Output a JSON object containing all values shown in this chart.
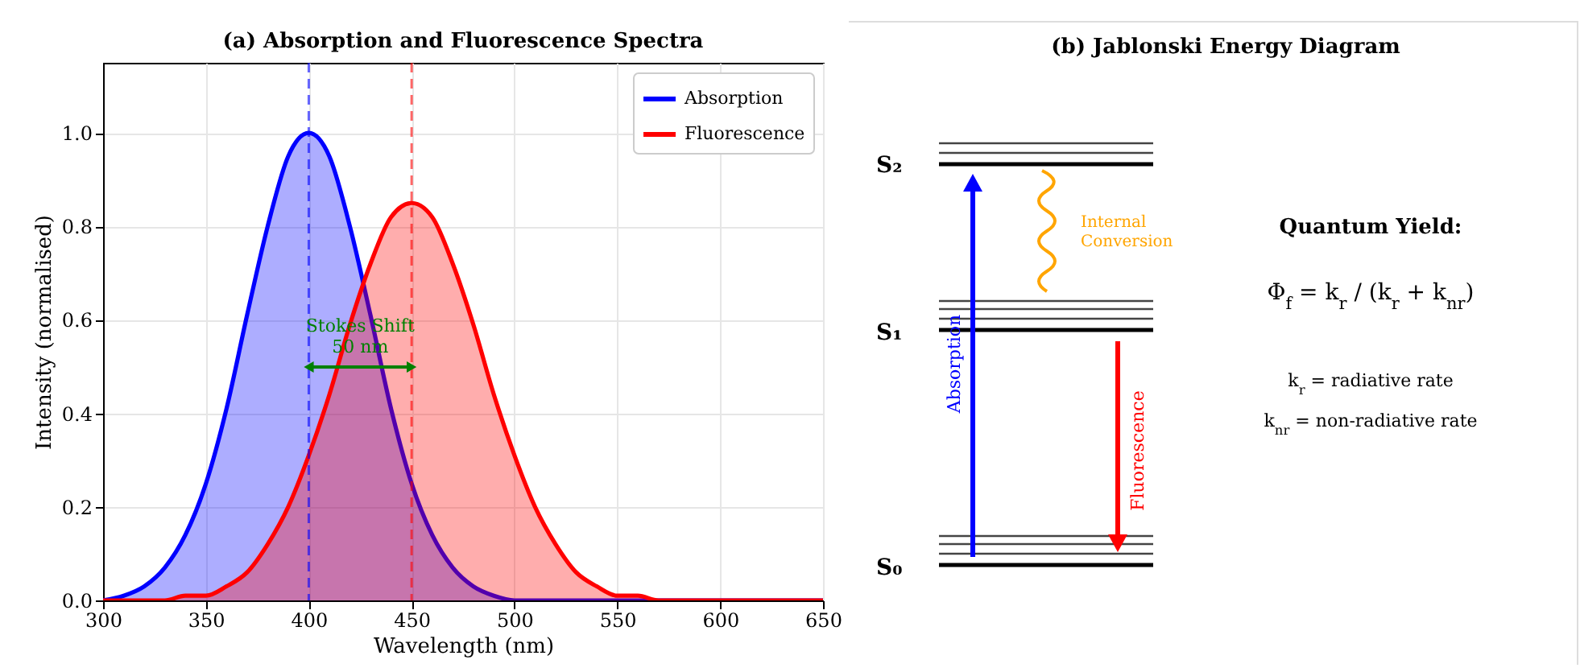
{
  "chart_data": [
    {
      "type": "area",
      "title": "(a) Absorption and Fluorescence Spectra",
      "xlabel": "Wavelength (nm)",
      "ylabel": "Intensity (normalised)",
      "x": [
        300,
        310,
        320,
        330,
        340,
        350,
        360,
        370,
        380,
        390,
        400,
        410,
        420,
        430,
        440,
        450,
        460,
        470,
        480,
        490,
        500,
        510,
        520,
        530,
        540,
        550,
        560,
        570,
        580,
        590,
        600,
        610,
        620,
        630,
        640,
        650
      ],
      "series": [
        {
          "name": "Absorption",
          "color": "#0000ff",
          "values": [
            0,
            0.01,
            0.03,
            0.07,
            0.14,
            0.25,
            0.41,
            0.61,
            0.8,
            0.95,
            1,
            0.95,
            0.8,
            0.61,
            0.41,
            0.25,
            0.14,
            0.07,
            0.03,
            0.01,
            0,
            0,
            0,
            0,
            0,
            0,
            0,
            0,
            0,
            0,
            0,
            0,
            0,
            0,
            0,
            0
          ]
        },
        {
          "name": "Fluorescence",
          "color": "#ff0000",
          "values": [
            0,
            0,
            0,
            0,
            0.01,
            0.01,
            0.03,
            0.06,
            0.12,
            0.2,
            0.31,
            0.44,
            0.59,
            0.72,
            0.82,
            0.85,
            0.82,
            0.72,
            0.59,
            0.44,
            0.31,
            0.2,
            0.12,
            0.06,
            0.03,
            0.01,
            0.01,
            0,
            0,
            0,
            0,
            0,
            0,
            0,
            0,
            0
          ]
        }
      ],
      "xlim": [
        300,
        650
      ],
      "xticks": [
        300,
        350,
        400,
        450,
        500,
        550,
        600,
        650
      ],
      "ylim": [
        0,
        1.15
      ],
      "yticks": [
        {
          "value": 0,
          "label": "0.0"
        },
        0.2,
        0.4,
        0.6,
        0.8,
        {
          "value": 1,
          "label": "1.0"
        }
      ],
      "ref_lines": [
        {
          "axis": "x",
          "value": 400,
          "color": "#0000ff",
          "line_style": "dashed"
        },
        {
          "axis": "x",
          "value": 450,
          "color": "#ff0000",
          "line_style": "dashed"
        }
      ],
      "annotations": [
        "Stokes Shift\n50 nm"
      ],
      "grid": true,
      "legend": "top right"
    },
    {
      "type": "other",
      "title": "(b) Jablonski Energy Diagram",
      "annotations": [
        "S₂",
        "S₁",
        "S₀",
        "Internal Conversion",
        "Absorption",
        "Fluorescence",
        "Quantum Yield:",
        "Φ$_{f}$ = k$_{r}$ / (k$_{r}$ + k$_{nr}$)",
        "k$_{r}$ = radiative rate",
        "k$_{nr}$ = non-radiative rate"
      ]
    }
  ]
}
